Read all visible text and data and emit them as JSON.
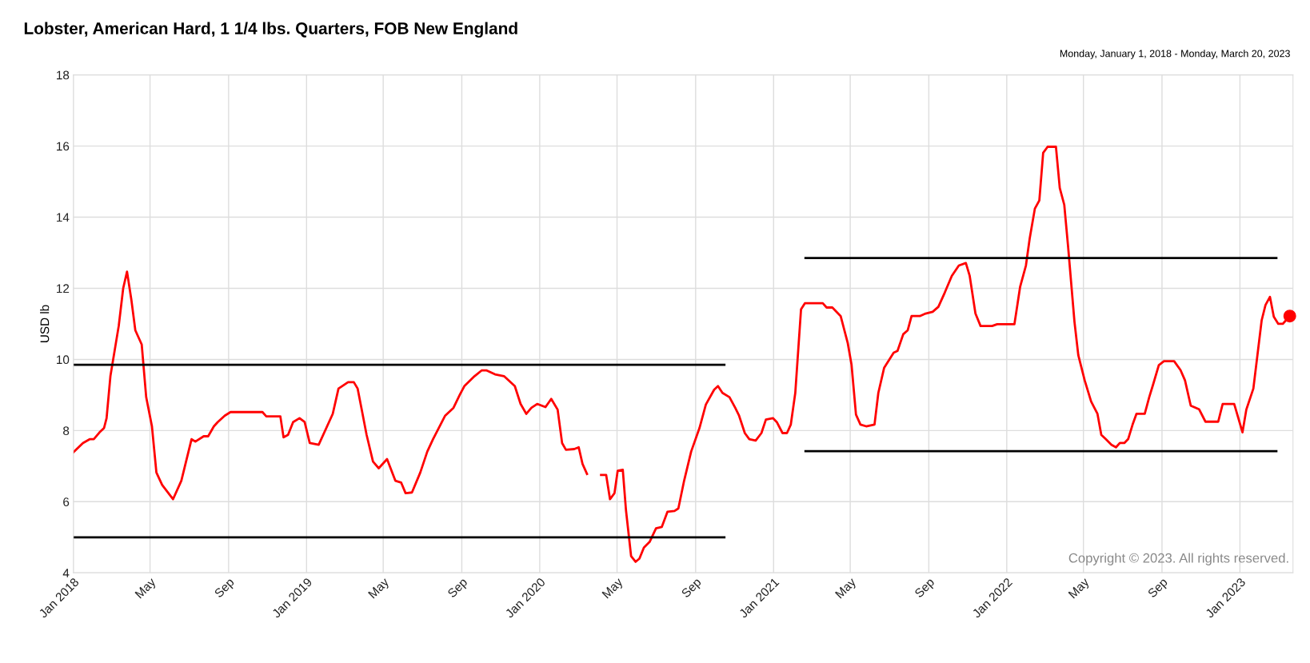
{
  "chart_data": {
    "type": "line",
    "title": "Lobster, American Hard, 1 1/4 lbs. Quarters, FOB New England",
    "subtitle": "Monday, January 1, 2018 - Monday, March 20, 2023",
    "ylabel": "USD lb",
    "annotations": [
      "Copyright © 2023. All rights reserved."
    ],
    "xlim": [
      "2018-01-01",
      "2023-03-25"
    ],
    "ylim": [
      4,
      18
    ],
    "yticks": [
      4,
      6,
      8,
      10,
      12,
      14,
      16,
      18
    ],
    "xticks": [
      {
        "value": "2018-01-01",
        "label": "Jan 2018"
      },
      {
        "value": "2018-05-01",
        "label": "May"
      },
      {
        "value": "2018-09-01",
        "label": "Sep"
      },
      {
        "value": "2019-01-01",
        "label": "Jan 2019"
      },
      {
        "value": "2019-05-01",
        "label": "May"
      },
      {
        "value": "2019-09-01",
        "label": "Sep"
      },
      {
        "value": "2020-01-01",
        "label": "Jan 2020"
      },
      {
        "value": "2020-05-01",
        "label": "May"
      },
      {
        "value": "2020-09-01",
        "label": "Sep"
      },
      {
        "value": "2021-01-01",
        "label": "Jan 2021"
      },
      {
        "value": "2021-05-01",
        "label": "May"
      },
      {
        "value": "2021-09-01",
        "label": "Sep"
      },
      {
        "value": "2022-01-01",
        "label": "Jan 2022"
      },
      {
        "value": "2022-05-01",
        "label": "May"
      },
      {
        "value": "2022-09-01",
        "label": "Sep"
      },
      {
        "value": "2023-01-01",
        "label": "Jan 2023"
      }
    ],
    "grid": true,
    "series": [
      {
        "color": "#ff0000",
        "x": [
          "2018-01-01",
          "2018-01-16",
          "2018-01-27",
          "2018-02-02",
          "2018-02-11",
          "2018-02-18",
          "2018-02-22",
          "2018-02-28",
          "2018-03-13",
          "2018-03-20",
          "2018-03-26",
          "2018-04-02",
          "2018-04-08",
          "2018-04-18",
          "2018-04-25",
          "2018-05-04",
          "2018-05-11",
          "2018-05-20",
          "2018-06-06",
          "2018-06-19",
          "2018-07-05",
          "2018-07-11",
          "2018-07-24",
          "2018-07-31",
          "2018-08-09",
          "2018-08-15",
          "2018-08-26",
          "2018-09-04",
          "2018-10-24",
          "2018-10-30",
          "2018-11-21",
          "2018-11-26",
          "2018-12-03",
          "2018-12-11",
          "2018-12-21",
          "2018-12-29",
          "2019-01-06",
          "2019-01-20",
          "2019-02-11",
          "2019-02-20",
          "2019-03-07",
          "2019-03-16",
          "2019-03-22",
          "2019-04-05",
          "2019-04-15",
          "2019-04-24",
          "2019-05-07",
          "2019-05-20",
          "2019-05-29",
          "2019-06-05",
          "2019-06-15",
          "2019-06-28",
          "2019-07-09",
          "2019-07-18",
          "2019-08-06",
          "2019-08-19",
          "2019-08-29",
          "2019-09-05",
          "2019-09-21",
          "2019-10-02",
          "2019-10-10",
          "2019-10-23",
          "2019-11-06",
          "2019-11-23",
          "2019-12-02",
          "2019-12-11",
          "2019-12-19",
          "2019-12-28",
          "2020-01-10",
          "2020-01-19",
          "2020-01-29",
          "2020-02-05",
          "2020-02-11",
          "2020-02-24",
          "2020-03-02",
          "2020-03-08",
          "2020-03-15",
          "2020-03-25",
          "2020-04-06",
          "2020-04-14",
          "2020-04-20",
          "2020-04-27",
          "2020-05-02",
          "2020-05-10",
          "2020-05-15",
          "2020-05-23",
          "2020-05-30",
          "2020-06-05",
          "2020-06-12",
          "2020-06-21",
          "2020-07-01",
          "2020-07-10",
          "2020-07-19",
          "2020-07-30",
          "2020-08-05",
          "2020-08-14",
          "2020-08-25",
          "2020-09-07",
          "2020-09-17",
          "2020-09-30",
          "2020-10-06",
          "2020-10-13",
          "2020-10-24",
          "2020-11-02",
          "2020-11-08",
          "2020-11-17",
          "2020-11-24",
          "2020-12-04",
          "2020-12-13",
          "2020-12-20",
          "2020-12-31",
          "2021-01-06",
          "2021-01-15",
          "2021-01-22",
          "2021-01-28",
          "2021-02-04",
          "2021-02-13",
          "2021-02-19",
          "2021-03-19",
          "2021-03-25",
          "2021-04-03",
          "2021-04-16",
          "2021-04-27",
          "2021-05-03",
          "2021-05-10",
          "2021-05-17",
          "2021-05-26",
          "2021-06-08",
          "2021-06-14",
          "2021-06-23",
          "2021-07-08",
          "2021-07-14",
          "2021-07-23",
          "2021-07-30",
          "2021-08-05",
          "2021-08-18",
          "2021-08-27",
          "2021-09-07",
          "2021-09-16",
          "2021-09-26",
          "2021-10-07",
          "2021-10-18",
          "2021-10-29",
          "2021-11-04",
          "2021-11-13",
          "2021-11-21",
          "2021-12-09",
          "2021-12-17",
          "2022-01-13",
          "2022-01-22",
          "2022-01-31",
          "2022-02-06",
          "2022-02-14",
          "2022-02-21",
          "2022-02-27",
          "2022-03-06",
          "2022-03-19",
          "2022-03-25",
          "2022-04-01",
          "2022-04-07",
          "2022-04-17",
          "2022-04-23",
          "2022-05-03",
          "2022-05-13",
          "2022-05-23",
          "2022-05-29",
          "2022-06-05",
          "2022-06-14",
          "2022-06-21",
          "2022-06-27",
          "2022-07-04",
          "2022-07-10",
          "2022-07-17",
          "2022-07-23",
          "2022-08-05",
          "2022-08-12",
          "2022-08-18",
          "2022-08-27",
          "2022-09-04",
          "2022-09-20",
          "2022-09-30",
          "2022-10-07",
          "2022-10-16",
          "2022-10-29",
          "2022-11-08",
          "2022-11-28",
          "2022-12-05",
          "2022-12-13",
          "2022-12-23",
          "2023-01-05",
          "2023-01-11",
          "2023-01-22",
          "2023-02-04",
          "2023-02-10",
          "2023-02-17",
          "2023-02-23",
          "2023-03-02",
          "2023-03-09",
          "2023-03-20"
        ],
        "values": [
          7.39,
          7.65,
          7.76,
          7.76,
          7.95,
          8.07,
          8.35,
          9.53,
          10.94,
          12.0,
          12.47,
          11.65,
          10.82,
          10.42,
          8.94,
          8.12,
          6.82,
          6.47,
          6.07,
          6.59,
          7.76,
          7.69,
          7.84,
          7.84,
          8.12,
          8.24,
          8.42,
          8.52,
          8.52,
          8.4,
          8.4,
          7.81,
          7.88,
          8.24,
          8.35,
          8.24,
          7.65,
          7.6,
          8.47,
          9.18,
          9.36,
          9.36,
          9.18,
          7.88,
          7.13,
          6.94,
          7.2,
          6.59,
          6.54,
          6.24,
          6.26,
          6.82,
          7.41,
          7.76,
          8.42,
          8.64,
          9.01,
          9.25,
          9.53,
          9.69,
          9.69,
          9.58,
          9.53,
          9.25,
          8.75,
          8.47,
          8.64,
          8.75,
          8.66,
          8.89,
          8.59,
          7.65,
          7.46,
          7.48,
          7.53,
          7.06,
          6.78,
          null,
          6.75,
          6.75,
          6.07,
          6.24,
          6.87,
          6.9,
          5.76,
          4.47,
          4.31,
          4.4,
          4.71,
          4.87,
          5.25,
          5.29,
          5.72,
          5.74,
          5.81,
          6.59,
          7.41,
          8.07,
          8.73,
          9.15,
          9.25,
          9.06,
          8.94,
          8.64,
          8.42,
          7.93,
          7.76,
          7.72,
          7.93,
          8.31,
          8.35,
          8.24,
          7.93,
          7.93,
          8.17,
          9.06,
          11.41,
          11.58,
          11.58,
          11.46,
          11.46,
          11.22,
          10.47,
          9.86,
          8.45,
          8.17,
          8.12,
          8.17,
          9.06,
          9.76,
          10.19,
          10.24,
          10.71,
          10.82,
          11.22,
          11.22,
          11.29,
          11.34,
          11.48,
          11.88,
          12.35,
          12.64,
          12.71,
          12.35,
          11.29,
          10.94,
          10.94,
          10.99,
          10.99,
          12.05,
          12.64,
          13.41,
          14.24,
          14.47,
          15.81,
          15.98,
          15.98,
          14.82,
          14.35,
          13.18,
          11.06,
          10.12,
          9.41,
          8.82,
          8.47,
          7.88,
          7.76,
          7.6,
          7.53,
          7.65,
          7.65,
          7.76,
          8.17,
          8.47,
          8.47,
          8.94,
          9.29,
          9.84,
          9.95,
          9.95,
          9.7,
          9.41,
          8.7,
          8.6,
          8.25,
          8.25,
          8.75,
          8.75,
          8.75,
          7.95,
          8.59,
          9.18,
          11.1,
          11.53,
          11.76,
          11.2,
          11.0,
          11.0,
          11.22
        ]
      },
      {
        "type": "scatter",
        "color": "#ff0000",
        "marker": "circle",
        "x": [
          "2023-03-20"
        ],
        "values": [
          11.22
        ]
      },
      {
        "type": "line",
        "color": "#000000",
        "x": [
          "2018-01-01",
          "2020-10-16"
        ],
        "values": [
          9.85,
          9.85
        ]
      },
      {
        "type": "line",
        "color": "#000000",
        "x": [
          "2018-01-01",
          "2020-10-16"
        ],
        "values": [
          5.0,
          5.0
        ]
      },
      {
        "type": "line",
        "color": "#000000",
        "x": [
          "2021-02-20",
          "2023-02-27"
        ],
        "values": [
          12.85,
          12.85
        ]
      },
      {
        "type": "line",
        "color": "#000000",
        "x": [
          "2021-02-20",
          "2023-02-27"
        ],
        "values": [
          7.42,
          7.42
        ]
      }
    ]
  }
}
